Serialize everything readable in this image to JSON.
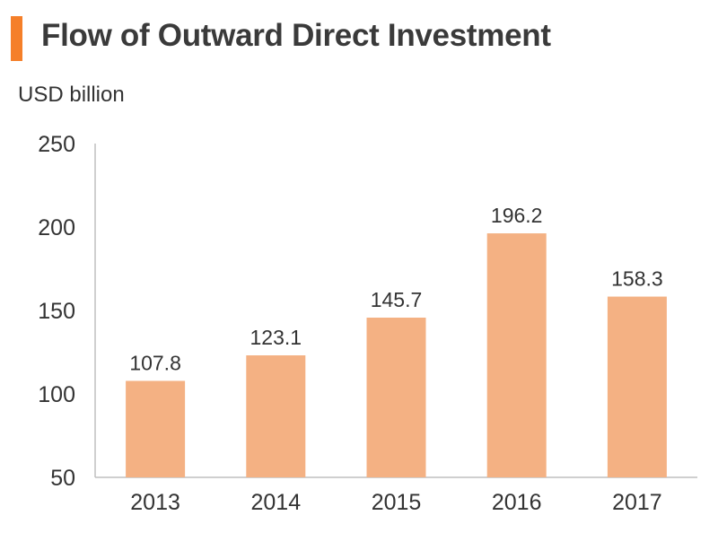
{
  "colors": {
    "accent": "#f57f29",
    "bar": "#f4b183",
    "axis": "#bfbfbf",
    "text": "#333333"
  },
  "chart_data": {
    "type": "bar",
    "title": "Flow of Outward Direct Investment",
    "unit_label": "USD billion",
    "categories": [
      "2013",
      "2014",
      "2015",
      "2016",
      "2017"
    ],
    "values": [
      107.8,
      123.1,
      145.7,
      196.2,
      158.3
    ],
    "value_labels": [
      "107.8",
      "123.1",
      "145.7",
      "196.2",
      "158.3"
    ],
    "ylim": [
      50,
      250
    ],
    "yticks": [
      "50",
      "100",
      "150",
      "200",
      "250"
    ],
    "grid": false,
    "legend": "none"
  }
}
